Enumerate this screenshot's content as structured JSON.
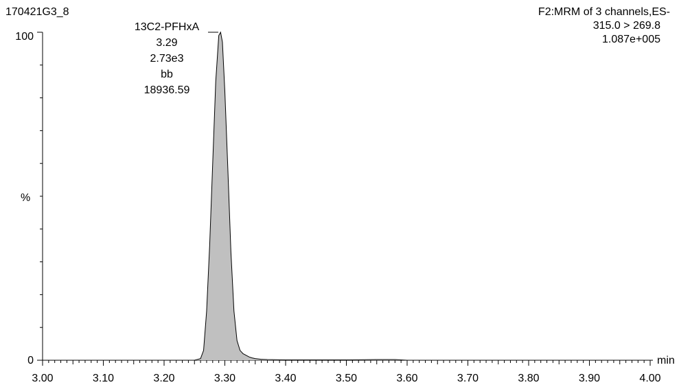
{
  "header": {
    "sample_id": "170421G3_8",
    "function": "F2:MRM of 3 channels,ES-",
    "transition": "315.0 > 269.8",
    "intensity": "1.087e+005"
  },
  "peak_label": {
    "name": "13C2-PFHxA",
    "rt": "3.29",
    "height": "2.73e3",
    "integration_type": "bb",
    "area": "18936.59"
  },
  "chart_data": {
    "type": "area",
    "xlabel": "min",
    "ylabel": "%",
    "xlim": [
      3.0,
      4.0
    ],
    "ylim": [
      0,
      100
    ],
    "x_ticks": [
      "3.00",
      "3.10",
      "3.20",
      "3.30",
      "3.40",
      "3.50",
      "3.60",
      "3.70",
      "3.80",
      "3.90",
      "4.00"
    ],
    "y_ticks": [
      "0",
      "100"
    ],
    "grid": false,
    "fill_color": "#c0c0c0",
    "line_color": "#000000",
    "series": [
      {
        "x": [
          3.0,
          3.1,
          3.2,
          3.25,
          3.26,
          3.265,
          3.27,
          3.275,
          3.28,
          3.285,
          3.29,
          3.293,
          3.296,
          3.3,
          3.305,
          3.31,
          3.315,
          3.32,
          3.325,
          3.33,
          3.335,
          3.34,
          3.345,
          3.35,
          3.36,
          3.37,
          3.4,
          3.45,
          3.5,
          3.55,
          3.58,
          3.6,
          3.7,
          3.8,
          3.9,
          4.0
        ],
        "y": [
          0,
          0,
          0,
          0,
          0.5,
          3,
          15,
          35,
          60,
          85,
          99,
          100,
          97,
          82,
          58,
          33,
          15,
          6,
          3,
          2,
          1.5,
          1,
          0.7,
          0.5,
          0.3,
          0.2,
          0.1,
          0.1,
          0.1,
          0.2,
          0.2,
          0,
          0,
          0,
          0,
          0
        ]
      }
    ]
  }
}
